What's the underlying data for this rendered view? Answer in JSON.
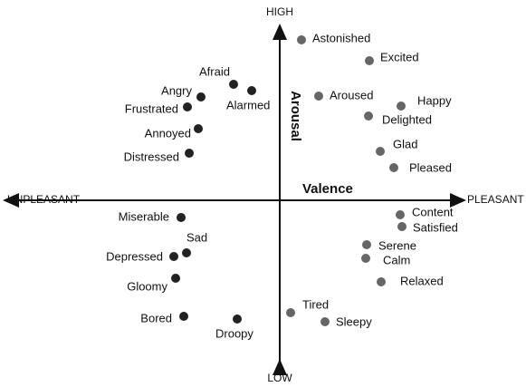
{
  "axes": {
    "top": "HIGH",
    "bottom": "LOW",
    "left": "UNPLEASANT",
    "right": "PLEASANT",
    "vertical": "Arousal",
    "horizontal": "Valence"
  },
  "nodes": [
    {
      "label": "Astonished"
    },
    {
      "label": "Excited"
    },
    {
      "label": "Aroused"
    },
    {
      "label": "Happy"
    },
    {
      "label": "Delighted"
    },
    {
      "label": "Glad"
    },
    {
      "label": "Pleased"
    },
    {
      "label": "Content"
    },
    {
      "label": "Satisfied"
    },
    {
      "label": "Serene"
    },
    {
      "label": "Calm"
    },
    {
      "label": "Relaxed"
    },
    {
      "label": "Tired"
    },
    {
      "label": "Sleepy"
    },
    {
      "label": "Droopy"
    },
    {
      "label": "Bored"
    },
    {
      "label": "Gloomy"
    },
    {
      "label": "Depressed"
    },
    {
      "label": "Sad"
    },
    {
      "label": "Miserable"
    },
    {
      "label": "Distressed"
    },
    {
      "label": "Annoyed"
    },
    {
      "label": "Frustrated"
    },
    {
      "label": "Angry"
    },
    {
      "label": "Afraid"
    },
    {
      "label": "Alarmed"
    }
  ]
}
